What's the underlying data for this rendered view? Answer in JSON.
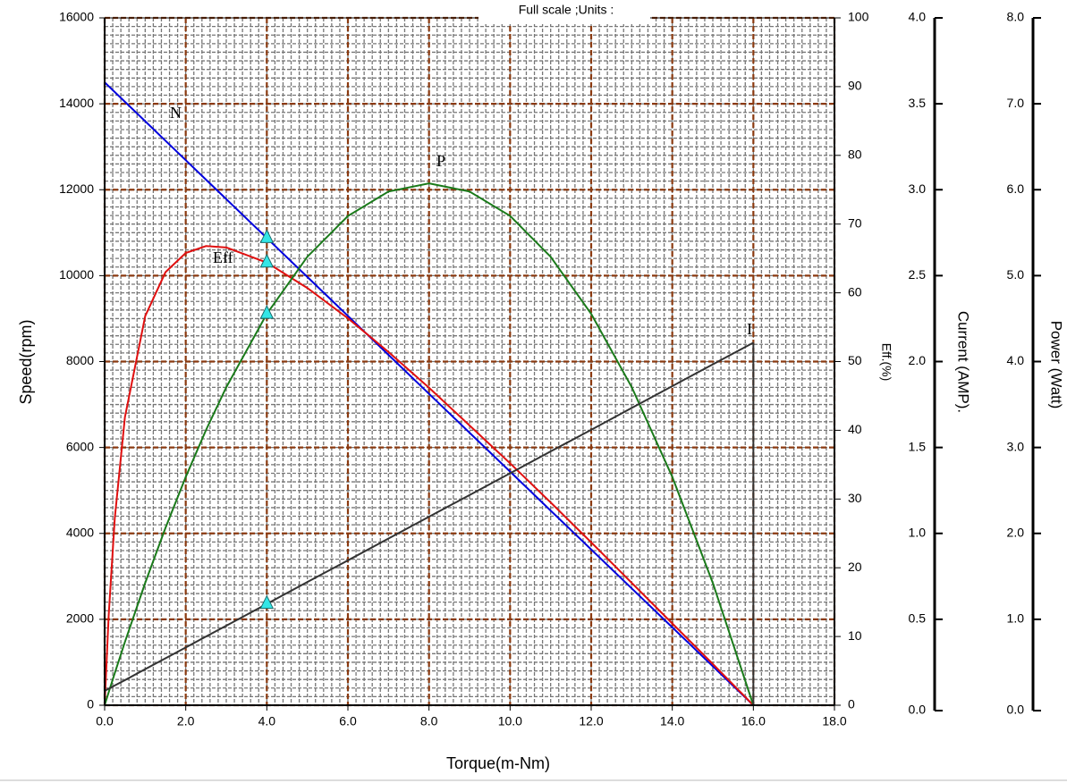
{
  "chart_data": {
    "type": "line",
    "title": "Full scale ;Units :",
    "x_label": "Torque(m-Nm)",
    "y_label": "Speed(rpm)",
    "y2_label": "Eff.(%)",
    "y3_label": "Current (AMP).",
    "y4_label": "Power (Watt)",
    "x": [
      0,
      0.1,
      0.25,
      0.5,
      1,
      1.5,
      2,
      2.5,
      3,
      4,
      5,
      6,
      7,
      8,
      9,
      10,
      11,
      12,
      13,
      14,
      15,
      16
    ],
    "series": [
      {
        "name": "N",
        "color": "#0000dd",
        "axis": "y",
        "values": [
          14500,
          14409,
          14273,
          14047,
          13594,
          13141,
          12688,
          12234,
          11781,
          10875,
          9969,
          9063,
          8156,
          7250,
          6344,
          5438,
          4531,
          3625,
          2719,
          1813,
          906,
          0
        ]
      },
      {
        "name": "Eff",
        "color": "#e01010",
        "axis": "y2",
        "values": [
          0,
          13.1,
          27.2,
          41.9,
          56.6,
          63.0,
          65.8,
          66.8,
          66.6,
          64.4,
          60.7,
          56.3,
          51.4,
          46.2,
          40.7,
          35.2,
          29.5,
          23.7,
          17.8,
          11.9,
          6.0,
          0
        ]
      },
      {
        "name": "P",
        "color": "#1a7a1a",
        "axis": "y4",
        "values": [
          0,
          0.151,
          0.374,
          0.736,
          1.424,
          2.064,
          2.657,
          3.203,
          3.701,
          4.555,
          5.22,
          5.694,
          5.979,
          6.074,
          5.979,
          5.695,
          5.219,
          4.555,
          3.702,
          2.658,
          1.423,
          0
        ]
      },
      {
        "name": "I",
        "color": "#333333",
        "axis": "y3",
        "values": [
          0.083,
          0.096,
          0.115,
          0.146,
          0.21,
          0.273,
          0.336,
          0.4,
          0.463,
          0.59,
          0.717,
          0.843,
          0.97,
          1.097,
          1.223,
          1.35,
          1.477,
          1.603,
          1.73,
          1.857,
          1.984,
          2.11
        ]
      }
    ],
    "marker_x": 4,
    "marker_color": "#33e6e6",
    "xlim": [
      0,
      18
    ],
    "xticks": [
      {
        "value": 0,
        "label": "0.0"
      },
      {
        "value": 2,
        "label": "2.0"
      },
      {
        "value": 4,
        "label": "4.0"
      },
      {
        "value": 6,
        "label": "6.0"
      },
      {
        "value": 8,
        "label": "8.0"
      },
      {
        "value": 10,
        "label": "10.0"
      },
      {
        "value": 12,
        "label": "12.0"
      },
      {
        "value": 14,
        "label": "14.0"
      },
      {
        "value": 16,
        "label": "16.0"
      },
      {
        "value": 18,
        "label": "18.0"
      }
    ],
    "ylim": [
      0,
      16000
    ],
    "yticks": [
      0,
      2000,
      4000,
      6000,
      8000,
      10000,
      12000,
      14000,
      16000
    ],
    "y2lim": [
      0,
      100
    ],
    "y2ticks": [
      0,
      10,
      20,
      30,
      40,
      50,
      60,
      70,
      80,
      90,
      100
    ],
    "y3lim": [
      0,
      4
    ],
    "y3ticks": [
      {
        "value": 0,
        "label": "0.0"
      },
      {
        "value": 0.5,
        "label": "0.5"
      },
      {
        "value": 1,
        "label": "1.0"
      },
      {
        "value": 1.5,
        "label": "1.5"
      },
      {
        "value": 2,
        "label": "2.0"
      },
      {
        "value": 2.5,
        "label": "2.5"
      },
      {
        "value": 3,
        "label": "3.0"
      },
      {
        "value": 3.5,
        "label": "3.5"
      },
      {
        "value": 4,
        "label": "4.0"
      }
    ],
    "y4lim": [
      0,
      8
    ],
    "y4ticks": [
      {
        "value": 0,
        "label": "0.0"
      },
      {
        "value": 1,
        "label": "1.0"
      },
      {
        "value": 2,
        "label": "2.0"
      },
      {
        "value": 3,
        "label": "3.0"
      },
      {
        "value": 4,
        "label": "4.0"
      },
      {
        "value": 5,
        "label": "5.0"
      },
      {
        "value": 6,
        "label": "6.0"
      },
      {
        "value": 7,
        "label": "7.0"
      },
      {
        "value": 8,
        "label": "8.0"
      }
    ],
    "x_minor_step": 0.2,
    "y_minor_step": 200,
    "grid": true,
    "axis_label_color": "#ee00ee"
  }
}
